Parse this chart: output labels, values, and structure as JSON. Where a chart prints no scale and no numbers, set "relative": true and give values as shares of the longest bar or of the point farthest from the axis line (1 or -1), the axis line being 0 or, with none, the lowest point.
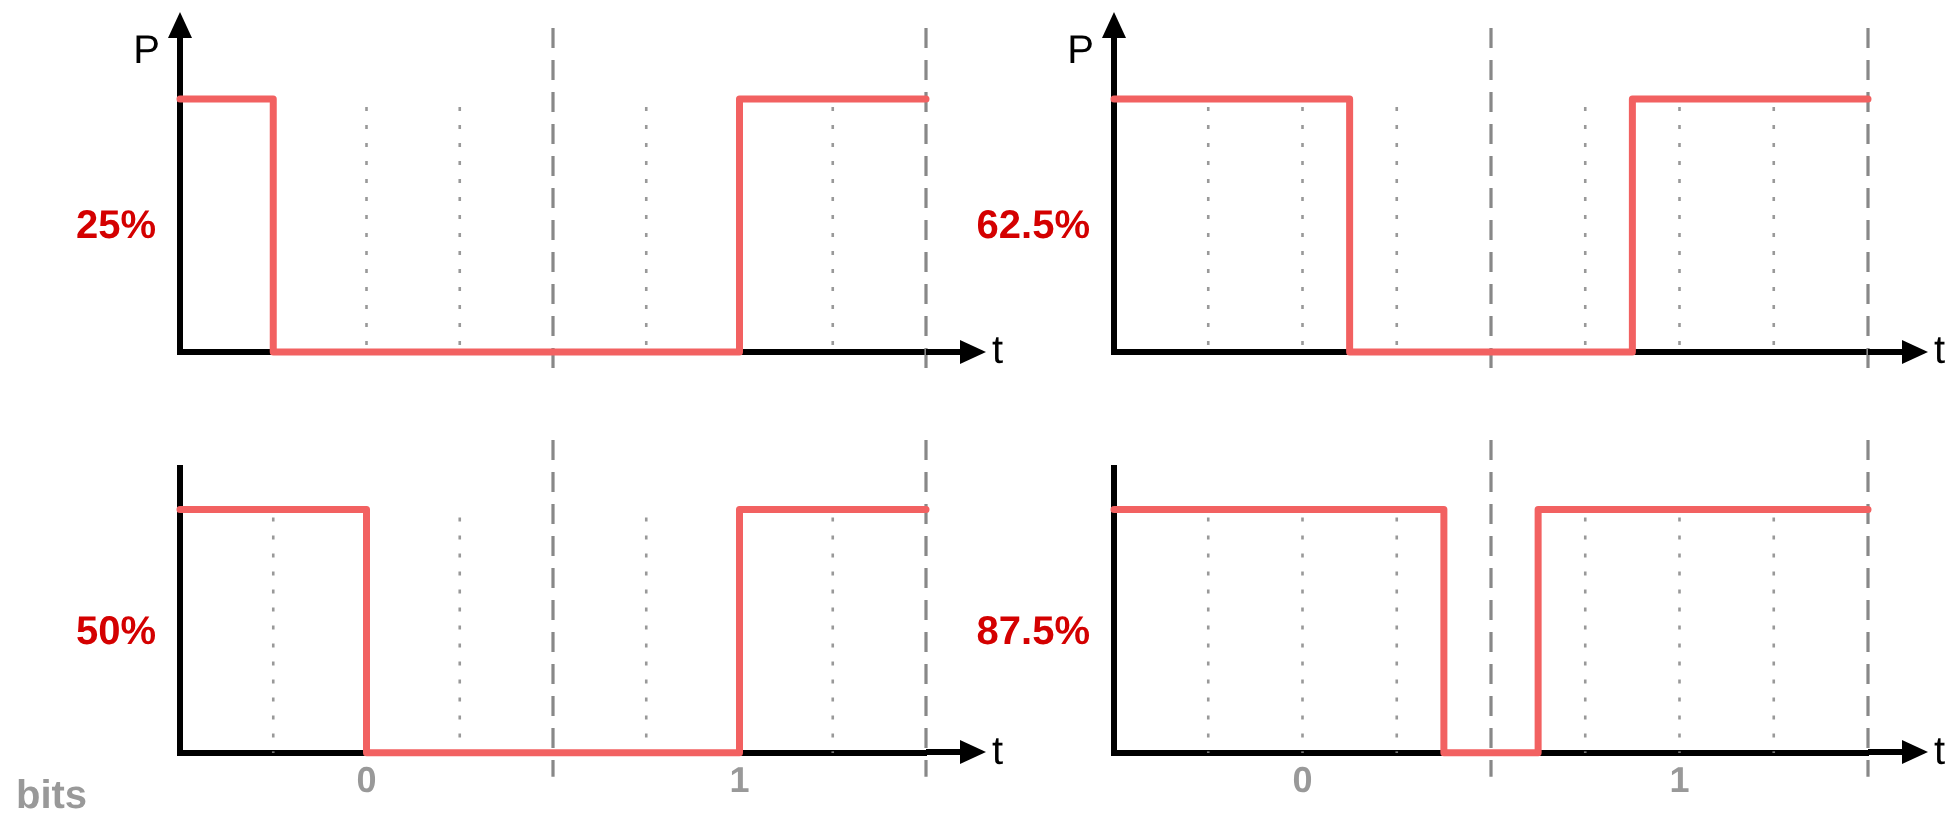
{
  "chart_data": [
    {
      "type": "step",
      "ylabel": "P",
      "xlabel": "t",
      "annotations": [
        "25%"
      ],
      "ref_lines": [
        {
          "axis": "x",
          "value": 1,
          "line_style": "dashed"
        },
        {
          "axis": "x",
          "value": 2,
          "line_style": "dashed"
        }
      ],
      "relative": true,
      "xlim": [
        0,
        2
      ],
      "grid": "x",
      "tick_labels": false,
      "xticks": [
        {
          "value": 0.25,
          "label": null
        },
        {
          "value": 0.5,
          "label": null
        },
        {
          "value": 0.75,
          "label": null
        },
        {
          "value": 1,
          "label": null
        },
        {
          "value": 1.25,
          "label": null
        },
        {
          "value": 1.5,
          "label": null
        },
        {
          "value": 1.75,
          "label": null
        },
        {
          "value": 2,
          "label": null
        }
      ],
      "x": [
        0,
        0.25,
        1.5,
        2
      ],
      "series": [
        {
          "color": "#f26161",
          "values": [
            1,
            0,
            1,
            1
          ]
        }
      ]
    },
    {
      "type": "step",
      "ylabel": "P",
      "xlabel": "t",
      "annotations": [
        "62.5%"
      ],
      "ref_lines": [
        {
          "axis": "x",
          "value": 1,
          "line_style": "dashed"
        },
        {
          "axis": "x",
          "value": 2,
          "line_style": "dashed"
        }
      ],
      "relative": true,
      "xlim": [
        0,
        2
      ],
      "grid": "x",
      "tick_labels": false,
      "xticks": [
        {
          "value": 0.25,
          "label": null
        },
        {
          "value": 0.5,
          "label": null
        },
        {
          "value": 0.75,
          "label": null
        },
        {
          "value": 1,
          "label": null
        },
        {
          "value": 1.25,
          "label": null
        },
        {
          "value": 1.5,
          "label": null
        },
        {
          "value": 1.75,
          "label": null
        },
        {
          "value": 2,
          "label": null
        }
      ],
      "x": [
        0,
        0.625,
        1.375,
        2
      ],
      "series": [
        {
          "color": "#f26161",
          "values": [
            1,
            0,
            1,
            1
          ]
        }
      ]
    },
    {
      "type": "step",
      "xlabel": "t",
      "annotations": [
        "50%",
        "bits"
      ],
      "ref_lines": [
        {
          "axis": "x",
          "value": 1,
          "line_style": "dashed"
        },
        {
          "axis": "x",
          "value": 2,
          "line_style": "dashed"
        }
      ],
      "relative": true,
      "xlim": [
        0,
        2
      ],
      "grid": "x",
      "tick_labels": "x",
      "xticks": [
        {
          "value": 0.25,
          "label": null
        },
        {
          "value": 0.5,
          "label": "0"
        },
        {
          "value": 0.75,
          "label": null
        },
        {
          "value": 1,
          "label": null
        },
        {
          "value": 1.25,
          "label": null
        },
        {
          "value": 1.5,
          "label": "1"
        },
        {
          "value": 1.75,
          "label": null
        },
        {
          "value": 2,
          "label": null
        }
      ],
      "x": [
        0,
        0.5,
        1.5,
        2
      ],
      "series": [
        {
          "color": "#f26161",
          "values": [
            1,
            0,
            1,
            1
          ]
        }
      ]
    },
    {
      "type": "step",
      "xlabel": "t",
      "annotations": [
        "87.5%"
      ],
      "ref_lines": [
        {
          "axis": "x",
          "value": 1,
          "line_style": "dashed"
        },
        {
          "axis": "x",
          "value": 2,
          "line_style": "dashed"
        }
      ],
      "relative": true,
      "xlim": [
        0,
        2
      ],
      "grid": "x",
      "tick_labels": "x",
      "xticks": [
        {
          "value": 0.25,
          "label": null
        },
        {
          "value": 0.5,
          "label": "0"
        },
        {
          "value": 0.75,
          "label": null
        },
        {
          "value": 1,
          "label": null
        },
        {
          "value": 1.25,
          "label": null
        },
        {
          "value": 1.5,
          "label": "1"
        },
        {
          "value": 1.75,
          "label": null
        },
        {
          "value": 2,
          "label": null
        }
      ],
      "x": [
        0,
        0.875,
        1.125,
        2
      ],
      "series": [
        {
          "color": "#f26161",
          "values": [
            1,
            0,
            1,
            1
          ]
        }
      ]
    }
  ]
}
